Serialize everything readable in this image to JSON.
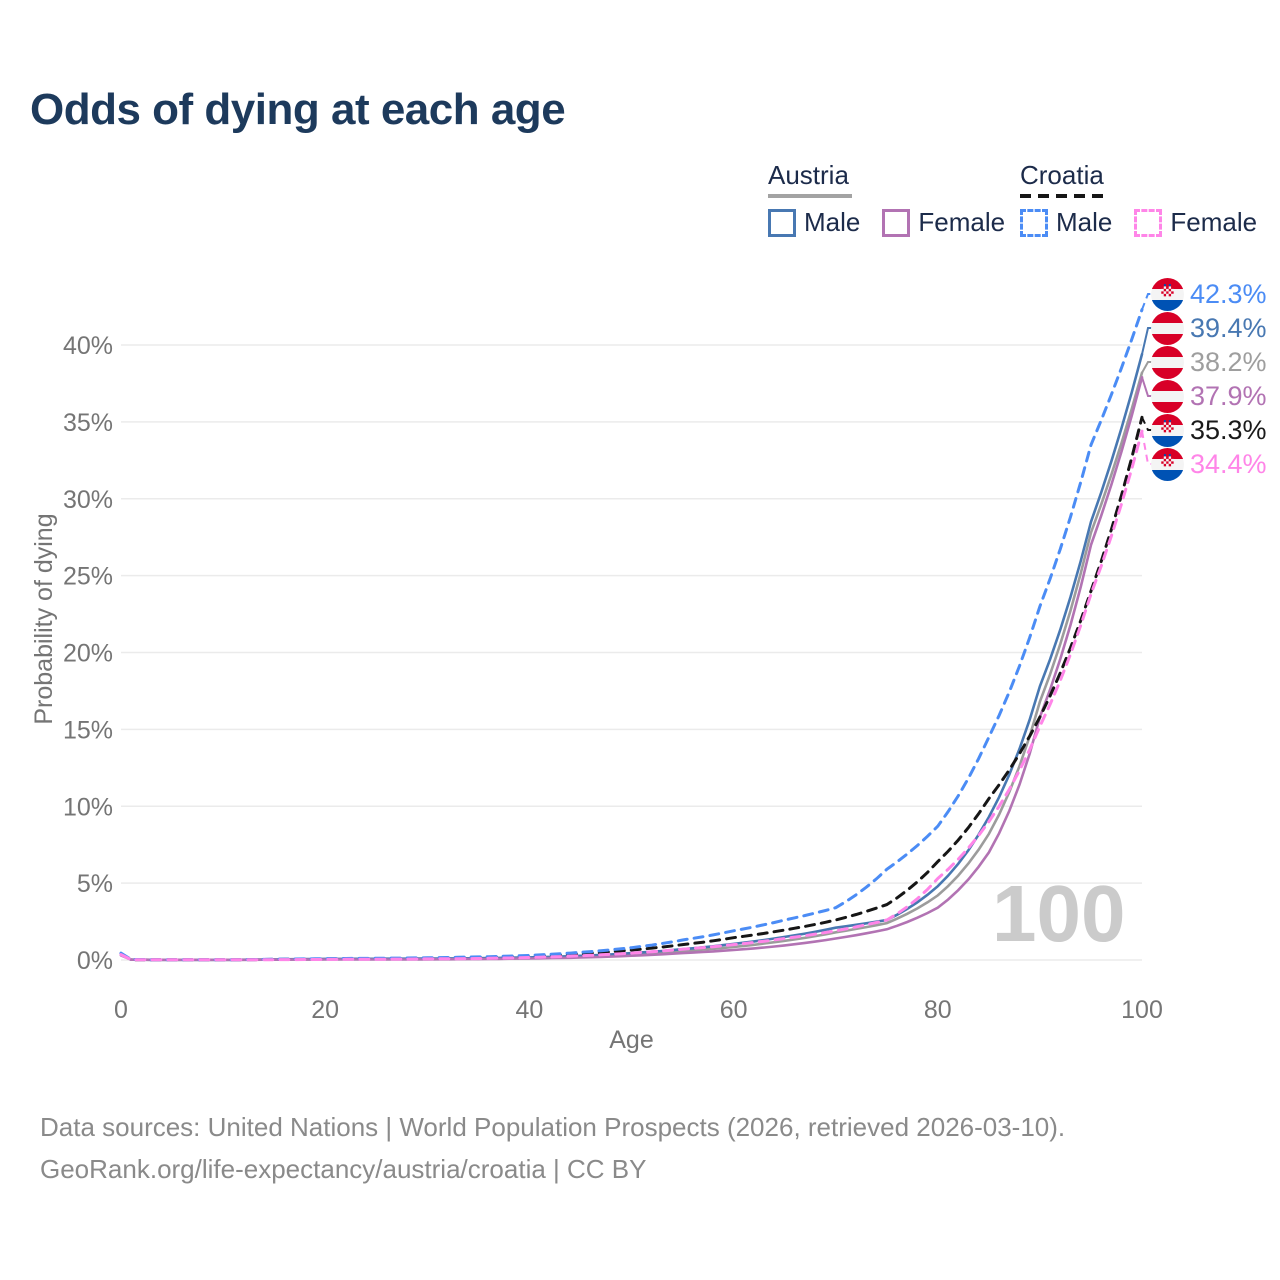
{
  "title": "Odds of dying at each age",
  "legend": {
    "austria": {
      "label": "Austria",
      "male": "Male",
      "female": "Female",
      "line_style": "solid"
    },
    "croatia": {
      "label": "Croatia",
      "male": "Male",
      "female": "Female",
      "line_style": "dashed"
    }
  },
  "watermark": "100",
  "colors": {
    "title_text": "#1d3a5c",
    "austria_male": "#4878b2",
    "austria_female": "#b273b3",
    "austria_both": "#9c9c9c",
    "croatia_male": "#4b8cf5",
    "croatia_female": "#ff85e8",
    "croatia_both": "#161616",
    "gridline": "#ebebeb",
    "axis_text": "#757575",
    "flag_red": "#d80027",
    "flag_blue": "#0052b4",
    "flag_white": "#f4f4f4"
  },
  "end_labels": [
    {
      "value": "42.3%",
      "series": "croatia_male",
      "flag": "croatia-flag-icon",
      "color": "#4b8cf5"
    },
    {
      "value": "39.4%",
      "series": "austria_male",
      "flag": "austria-flag-icon",
      "color": "#4878b2"
    },
    {
      "value": "38.2%",
      "series": "austria_both",
      "flag": "austria-flag-icon",
      "color": "#9e9e9e"
    },
    {
      "value": "37.9%",
      "series": "austria_female",
      "flag": "austria-flag-icon",
      "color": "#b273b3"
    },
    {
      "value": "35.3%",
      "series": "croatia_both",
      "flag": "croatia-flag-icon",
      "color": "#1a1a1a"
    },
    {
      "value": "34.4%",
      "series": "croatia_female",
      "flag": "croatia-flag-icon",
      "color": "#ff85e8"
    }
  ],
  "footer": {
    "line1": "Data sources: United Nations | World Population Prospects (2026, retrieved 2026-03-10).",
    "line2": "GeoRank.org/life-expectancy/austria/croatia | CC BY"
  },
  "chart_data": {
    "type": "line",
    "title": "Odds of dying at each age",
    "xlabel": "Age",
    "ylabel": "Probability of dying",
    "xlim": [
      0,
      100
    ],
    "ylim": [
      0,
      44
    ],
    "grid": "horizontal",
    "legend_position": "top-right",
    "unit": "percent probability of dying",
    "x_ticks": {
      "values": [
        0,
        20,
        40,
        60,
        80,
        100
      ],
      "labels": [
        "0",
        "20",
        "40",
        "60",
        "80",
        "100"
      ]
    },
    "y_ticks": {
      "values": [
        0,
        5,
        10,
        15,
        20,
        25,
        30,
        35,
        40
      ],
      "labels": [
        "0%",
        "5%",
        "10%",
        "15%",
        "20%",
        "25%",
        "30%",
        "35%",
        "40%"
      ]
    },
    "ages": [
      0,
      1,
      5,
      10,
      15,
      20,
      25,
      30,
      35,
      40,
      45,
      50,
      55,
      60,
      65,
      70,
      75,
      80,
      85,
      90,
      95,
      100
    ],
    "series": [
      {
        "id": "austria_both",
        "name": "Austria (both sexes)",
        "color": "#9c9c9c",
        "dash": false,
        "end_value": 38.2,
        "values": [
          0.32,
          0.02,
          0.01,
          0.01,
          0.03,
          0.05,
          0.06,
          0.07,
          0.09,
          0.14,
          0.22,
          0.37,
          0.58,
          0.85,
          1.25,
          1.8,
          2.4,
          4.2,
          8.2,
          16.8,
          27.8,
          38.2
        ]
      },
      {
        "id": "austria_male",
        "name": "Austria Male",
        "color": "#4878b2",
        "dash": false,
        "end_value": 39.4,
        "values": [
          0.35,
          0.02,
          0.01,
          0.01,
          0.04,
          0.07,
          0.08,
          0.09,
          0.12,
          0.17,
          0.27,
          0.45,
          0.7,
          1.05,
          1.5,
          2.1,
          2.6,
          4.8,
          9.3,
          17.8,
          28.5,
          39.4
        ]
      },
      {
        "id": "austria_female",
        "name": "Austria Female",
        "color": "#b273b3",
        "dash": false,
        "end_value": 37.9,
        "values": [
          0.3,
          0.02,
          0.01,
          0.01,
          0.02,
          0.03,
          0.03,
          0.04,
          0.06,
          0.1,
          0.16,
          0.28,
          0.45,
          0.65,
          0.95,
          1.4,
          2.0,
          3.4,
          7.0,
          15.8,
          27.0,
          37.9
        ]
      },
      {
        "id": "croatia_both",
        "name": "Croatia (both sexes)",
        "color": "#161616",
        "dash": true,
        "end_value": 35.3,
        "values": [
          0.4,
          0.02,
          0.01,
          0.01,
          0.04,
          0.07,
          0.08,
          0.11,
          0.16,
          0.24,
          0.4,
          0.65,
          1.0,
          1.45,
          1.95,
          2.6,
          3.6,
          6.4,
          10.5,
          15.8,
          24.0,
          35.3
        ]
      },
      {
        "id": "croatia_male",
        "name": "Croatia Male",
        "color": "#4b8cf5",
        "dash": true,
        "end_value": 42.3,
        "values": [
          0.45,
          0.03,
          0.01,
          0.01,
          0.05,
          0.09,
          0.11,
          0.14,
          0.2,
          0.3,
          0.5,
          0.8,
          1.3,
          1.9,
          2.6,
          3.4,
          5.9,
          8.7,
          14.5,
          23.0,
          33.5,
          42.3
        ]
      },
      {
        "id": "croatia_female",
        "name": "Croatia Female",
        "color": "#ff85e8",
        "dash": true,
        "end_value": 34.4,
        "values": [
          0.35,
          0.02,
          0.01,
          0.01,
          0.02,
          0.04,
          0.05,
          0.07,
          0.1,
          0.16,
          0.28,
          0.45,
          0.7,
          1.0,
          1.4,
          1.9,
          2.6,
          5.3,
          9.0,
          15.2,
          23.8,
          34.4
        ]
      }
    ]
  }
}
